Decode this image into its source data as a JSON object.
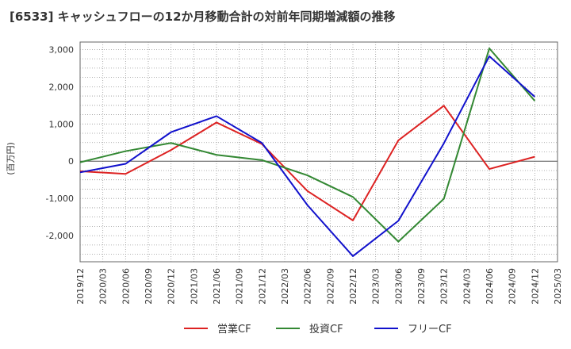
{
  "chart_data": {
    "type": "line",
    "title": "[6533]  キャッシュフローの12か月移動合計の対前年同期増減額の推移",
    "ylabel": "(百万円)",
    "xlabel": "",
    "ylim": [
      -2700,
      3200
    ],
    "yticks": [
      3000,
      2000,
      1000,
      0,
      -1000,
      -2000
    ],
    "ytick_labels": [
      "3,000",
      "2,000",
      "1,000",
      "0",
      "-1,000",
      "-2,000"
    ],
    "x_ticks": [
      "2019/12",
      "2020/03",
      "2020/06",
      "2020/09",
      "2020/12",
      "2021/03",
      "2021/06",
      "2021/09",
      "2021/12",
      "2022/03",
      "2022/06",
      "2022/09",
      "2022/12",
      "2023/03",
      "2023/06",
      "2023/09",
      "2023/12",
      "2024/03",
      "2024/06",
      "2024/09",
      "2024/12",
      "2025/03"
    ],
    "x": [
      "2019/12",
      "2020/06",
      "2020/12",
      "2021/06",
      "2021/12",
      "2022/06",
      "2022/12",
      "2023/06",
      "2023/12",
      "2024/06",
      "2024/12"
    ],
    "grid": true,
    "legend_position": "bottom",
    "series": [
      {
        "name": "営業CF",
        "color": "#dd2222",
        "values": [
          -270,
          -340,
          300,
          1040,
          460,
          -800,
          -1590,
          560,
          1490,
          -210,
          120
        ]
      },
      {
        "name": "投資CF",
        "color": "#338833",
        "values": [
          -30,
          270,
          490,
          170,
          30,
          -380,
          -960,
          -2160,
          -1010,
          3030,
          1620
        ]
      },
      {
        "name": "フリーCF",
        "color": "#1111cc",
        "values": [
          -300,
          -70,
          780,
          1210,
          490,
          -1180,
          -2550,
          -1600,
          480,
          2820,
          1730
        ]
      }
    ]
  }
}
